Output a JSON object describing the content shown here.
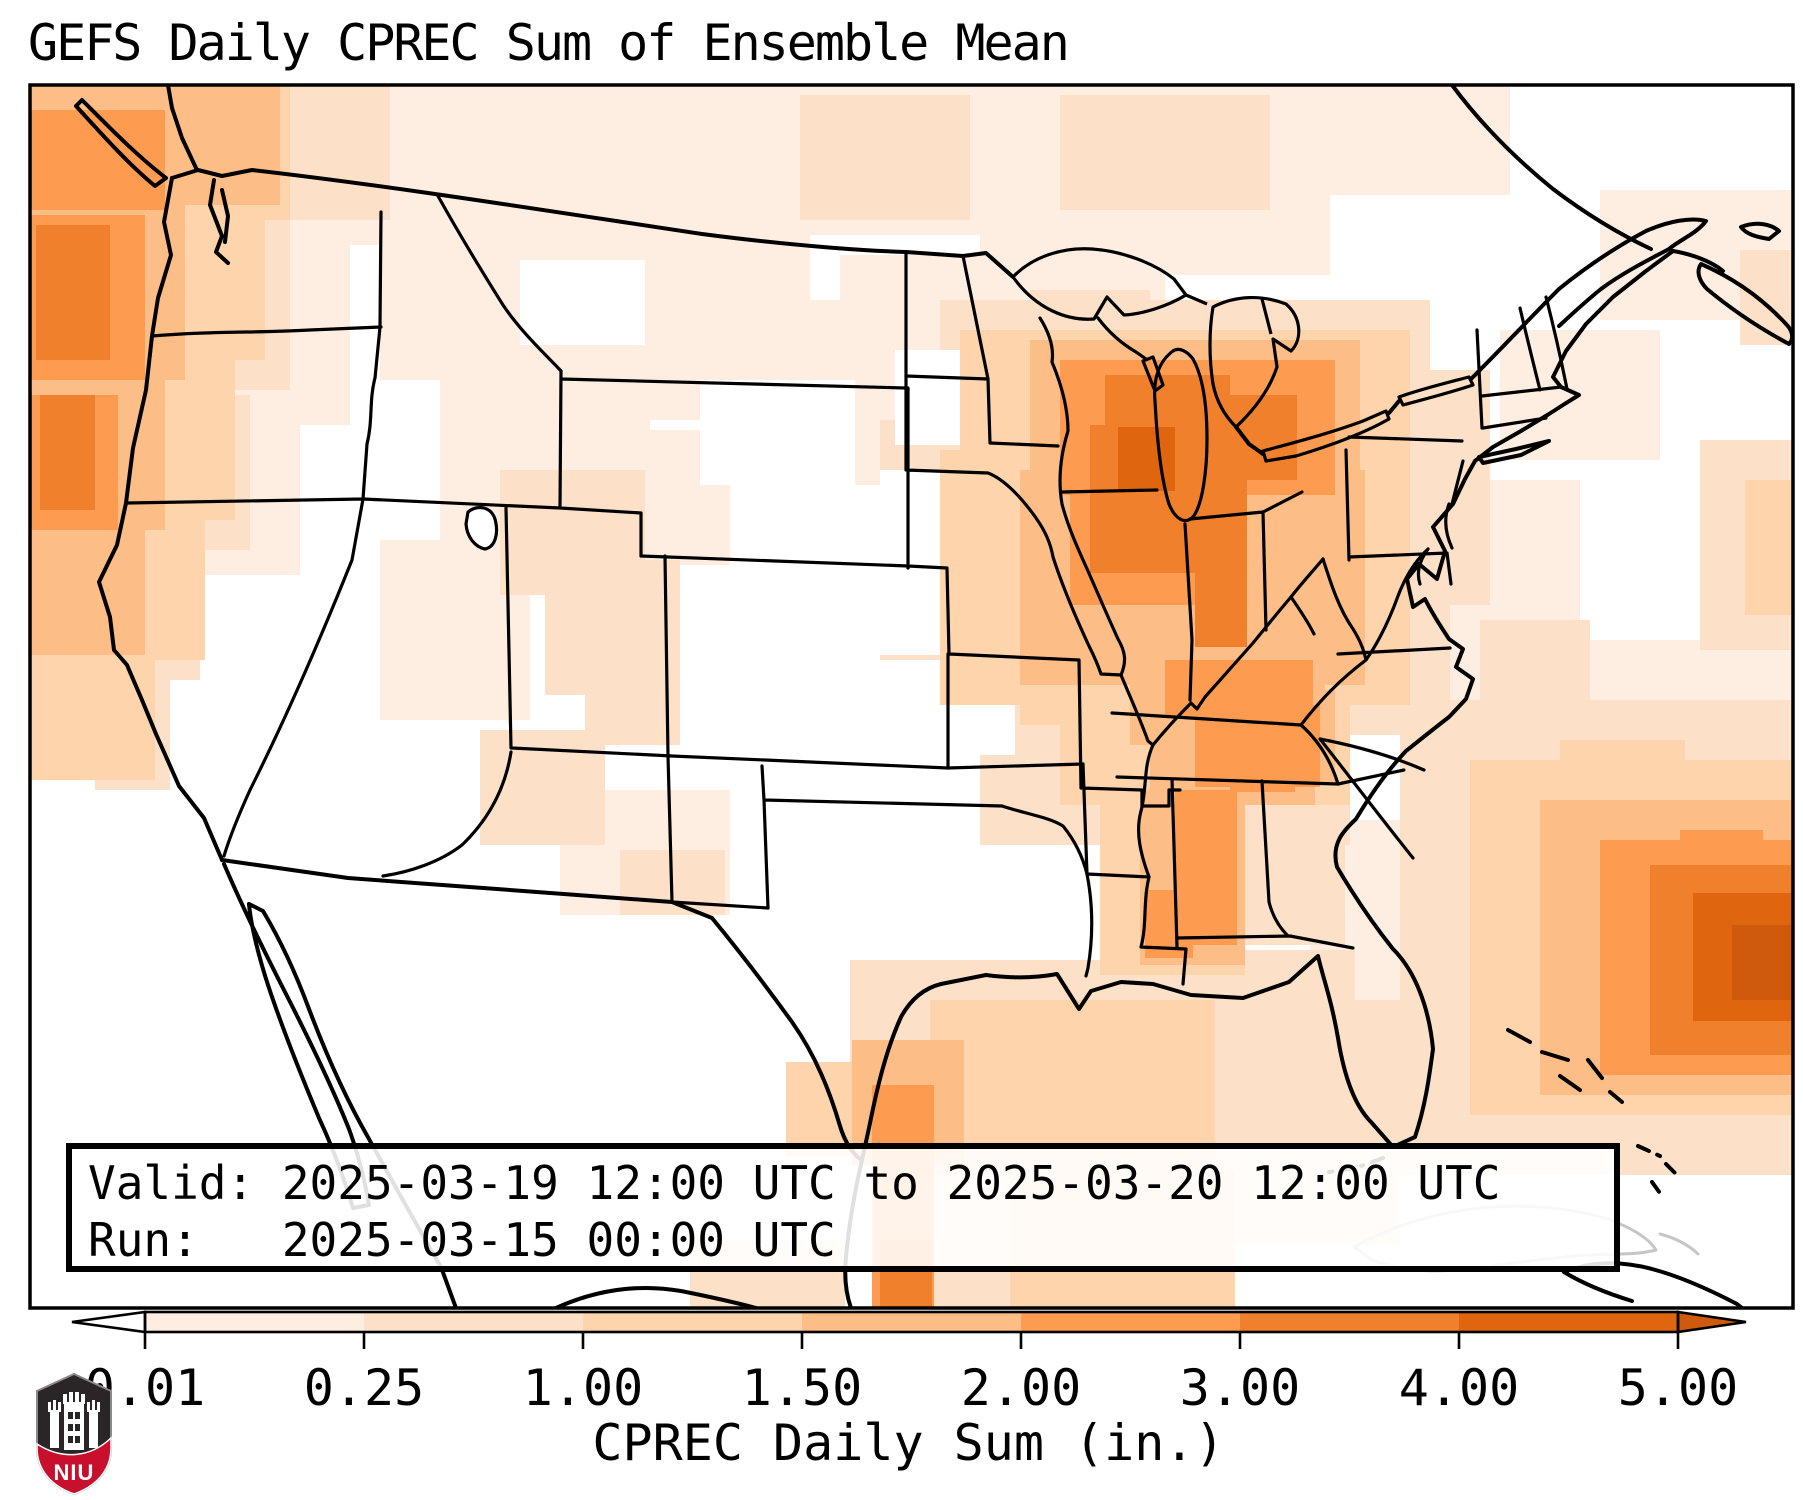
{
  "title": "GEFS Daily CPREC Sum of Ensemble Mean",
  "info_box": {
    "valid_line": "Valid: 2025-03-19 12:00 UTC to 2025-03-20 12:00 UTC",
    "run_line": "Run:   2025-03-15 00:00 UTC"
  },
  "logo": {
    "org": "NIU",
    "text": "NIU",
    "shield_dark": "#2a2627",
    "shield_red": "#c8102e"
  },
  "chart_data": {
    "type": "heatmap",
    "subtype": "geographic precipitation map (CONUS, pcolormesh style)",
    "title": "GEFS Daily CPREC Sum of Ensemble Mean",
    "colorbar_label": "CPREC Daily Sum (in.)",
    "units": "inches",
    "valid_period": "2025-03-19 12:00 UTC to 2025-03-20 12:00 UTC",
    "run_time": "2025-03-15 00:00 UTC",
    "legend_position": "horizontal colorbar, bottom",
    "colorbar": {
      "tick_labels": [
        "0.01",
        "0.25",
        "1.00",
        "1.50",
        "2.00",
        "3.00",
        "4.00",
        "5.00"
      ],
      "boundaries_in": [
        0.01,
        0.25,
        1.0,
        1.5,
        2.0,
        3.0,
        4.0,
        5.0
      ],
      "segment_colors": [
        "#fdeee1",
        "#fce1c8",
        "#fdd4ab",
        "#fdbd87",
        "#fd9c51",
        "#f0802b",
        "#e0650f"
      ],
      "under_arrow_color": "#ffffff",
      "over_arrow_color": "#cf5a0c",
      "outline_color": "#000000"
    },
    "colormap": {
      "name": "Oranges (discrete)",
      "levels": [
        "#ffffff",
        "#fdeee1",
        "#fce1c8",
        "#fdd4ab",
        "#fdbd87",
        "#fd9c51",
        "#f0802b",
        "#e0650f",
        "#cf5a0c"
      ]
    },
    "features": [
      {
        "region": "Pacific Northwest coast / offshore OR-WA",
        "approx_max_in": 3.0
      },
      {
        "region": "Central Illinois & Indiana (core of Midwest system)",
        "approx_max_in": 3.5
      },
      {
        "region": "Wisconsin / Lake Michigan / Lower Michigan",
        "approx_max_in": 2.5
      },
      {
        "region": "Kentucky - Tennessee - Alabama - Mississippi band",
        "approx_max_in": 2.0
      },
      {
        "region": "Western Atlantic offshore blob (SE of map)",
        "approx_max_in": 4.5
      },
      {
        "region": "Gulf of Mexico streak south of Texas",
        "approx_max_in": 3.0
      },
      {
        "region": "Texas / Southwest / Mexico interior",
        "approx_max_in": 0.0
      }
    ]
  }
}
